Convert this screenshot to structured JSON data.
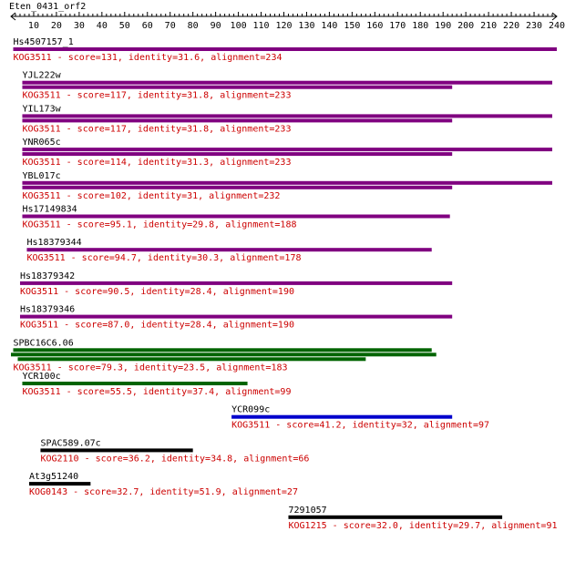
{
  "title": "Eten_0431_orf2",
  "axis": {
    "min": 0,
    "max": 240,
    "tick_labels": [
      "10",
      "20",
      "30",
      "40",
      "50",
      "60",
      "70",
      "80",
      "90",
      "100",
      "110",
      "120",
      "130",
      "140",
      "150",
      "160",
      "170",
      "180",
      "190",
      "200",
      "210",
      "220",
      "230",
      "240"
    ]
  },
  "colors": {
    "purple": "#800080",
    "green": "#006400",
    "blue": "#0000cc",
    "black": "#000000",
    "red_text": "#cc0000"
  },
  "hits": [
    {
      "name": "Hs4507157_1",
      "label": "KOG3511 - score=131, identity=31.6, alignment=234",
      "color": "purple",
      "bars": [
        {
          "start": 1,
          "end": 240
        }
      ]
    },
    {
      "name": "YJL222w",
      "label": "KOG3511 - score=117, identity=31.8, alignment=233",
      "color": "purple",
      "bars": [
        {
          "start": 5,
          "end": 238
        },
        {
          "start": 5,
          "end": 194
        }
      ]
    },
    {
      "name": "YIL173w",
      "label": "KOG3511 - score=117, identity=31.8, alignment=233",
      "color": "purple",
      "bars": [
        {
          "start": 5,
          "end": 238
        },
        {
          "start": 5,
          "end": 194
        }
      ]
    },
    {
      "name": "YNR065c",
      "label": "KOG3511 - score=114, identity=31.3, alignment=233",
      "color": "purple",
      "bars": [
        {
          "start": 5,
          "end": 238
        },
        {
          "start": 5,
          "end": 194
        }
      ]
    },
    {
      "name": "YBL017c",
      "label": "KOG3511 - score=102, identity=31, alignment=232",
      "color": "purple",
      "bars": [
        {
          "start": 5,
          "end": 238
        },
        {
          "start": 5,
          "end": 194
        }
      ]
    },
    {
      "name": "Hs17149834",
      "label": "KOG3511 - score=95.1, identity=29.8, alignment=188",
      "color": "purple",
      "bars": [
        {
          "start": 5,
          "end": 193
        }
      ]
    },
    {
      "name": "Hs18379344",
      "label": "KOG3511 - score=94.7, identity=30.3, alignment=178",
      "color": "purple",
      "bars": [
        {
          "start": 7,
          "end": 185
        }
      ]
    },
    {
      "name": "Hs18379342",
      "label": "KOG3511 - score=90.5, identity=28.4, alignment=190",
      "color": "purple",
      "bars": [
        {
          "start": 4,
          "end": 194
        }
      ]
    },
    {
      "name": "Hs18379346",
      "label": "KOG3511 - score=87.0, identity=28.4, alignment=190",
      "color": "purple",
      "bars": [
        {
          "start": 4,
          "end": 194
        }
      ]
    },
    {
      "name": "SPBC16C6.06",
      "label": "KOG3511 - score=79.3, identity=23.5, alignment=183",
      "color": "green",
      "bars": [
        {
          "start": 1,
          "end": 185
        },
        {
          "start": 0,
          "end": 187
        },
        {
          "start": 3,
          "end": 156
        }
      ]
    },
    {
      "name": "YCR100c",
      "label": "KOG3511 - score=55.5, identity=37.4, alignment=99",
      "color": "green",
      "bars": [
        {
          "start": 5,
          "end": 104
        }
      ]
    },
    {
      "name": "YCR099c",
      "label": "KOG3511 - score=41.2, identity=32, alignment=97",
      "color": "blue",
      "bars": [
        {
          "start": 97,
          "end": 194
        }
      ]
    },
    {
      "name": "SPAC589.07c",
      "label": "KOG2110 - score=36.2, identity=34.8, alignment=66",
      "color": "black",
      "bars": [
        {
          "start": 13,
          "end": 80
        }
      ]
    },
    {
      "name": "At3g51240",
      "label": "KOG0143 - score=32.7, identity=51.9, alignment=27",
      "color": "black",
      "bars": [
        {
          "start": 8,
          "end": 35
        }
      ]
    },
    {
      "name": "7291057",
      "label": "KOG1215 - score=32.0, identity=29.7, alignment=91",
      "color": "black",
      "bars": [
        {
          "start": 122,
          "end": 216
        }
      ]
    }
  ]
}
